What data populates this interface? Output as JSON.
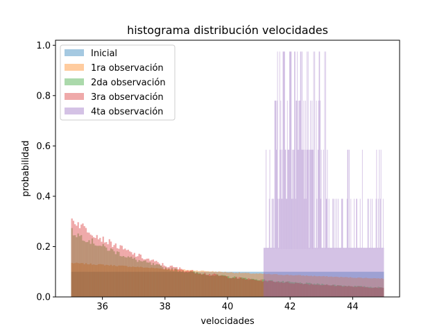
{
  "chart_data": {
    "type": "bar",
    "title": "histograma distribución velocidades",
    "xlabel": "velocidades",
    "ylabel": "probabilidad",
    "xlim": [
      34.5,
      45.5
    ],
    "ylim": [
      0,
      1.02
    ],
    "xticks": [
      36,
      38,
      40,
      42,
      44
    ],
    "yticks": [
      0.0,
      0.2,
      0.4,
      0.6,
      0.8,
      1.0
    ],
    "grid": false,
    "legend_position": "upper left",
    "alpha": 0.4,
    "series": [
      {
        "name": " Inicial",
        "color": "#1f77b4",
        "kind": "uniform",
        "x_range": [
          35,
          45
        ],
        "value": 0.1
      },
      {
        "name": "1ra observación",
        "color": "#ff7f0e",
        "kind": "curve",
        "x_range": [
          35,
          45
        ],
        "x": [
          35,
          36,
          37,
          38,
          39,
          40,
          41,
          42,
          43,
          44,
          45
        ],
        "values": [
          0.135,
          0.128,
          0.12,
          0.112,
          0.105,
          0.098,
          0.092,
          0.087,
          0.082,
          0.077,
          0.073
        ]
      },
      {
        "name": "2da observación",
        "color": "#2ca02c",
        "kind": "curve",
        "x_range": [
          35,
          45
        ],
        "x": [
          35,
          36,
          37,
          38,
          39,
          40,
          41,
          42,
          43,
          44,
          45
        ],
        "values": [
          0.26,
          0.2,
          0.15,
          0.115,
          0.095,
          0.08,
          0.068,
          0.058,
          0.05,
          0.043,
          0.037
        ]
      },
      {
        "name": "3ra observación",
        "color": "#d62728",
        "kind": "curve",
        "x_range": [
          35,
          45
        ],
        "x": [
          35,
          36,
          37,
          38,
          39,
          40,
          41,
          42,
          43,
          44,
          45
        ],
        "values": [
          0.31,
          0.23,
          0.17,
          0.125,
          0.098,
          0.08,
          0.066,
          0.056,
          0.048,
          0.041,
          0.035
        ]
      },
      {
        "name": "4ta observación",
        "color": "#9467bd",
        "kind": "spiky",
        "x_range": [
          41.15,
          45
        ],
        "levels": [
          0.195,
          0.39,
          0.585,
          0.78,
          0.975
        ],
        "baseline": 0.19
      }
    ]
  }
}
